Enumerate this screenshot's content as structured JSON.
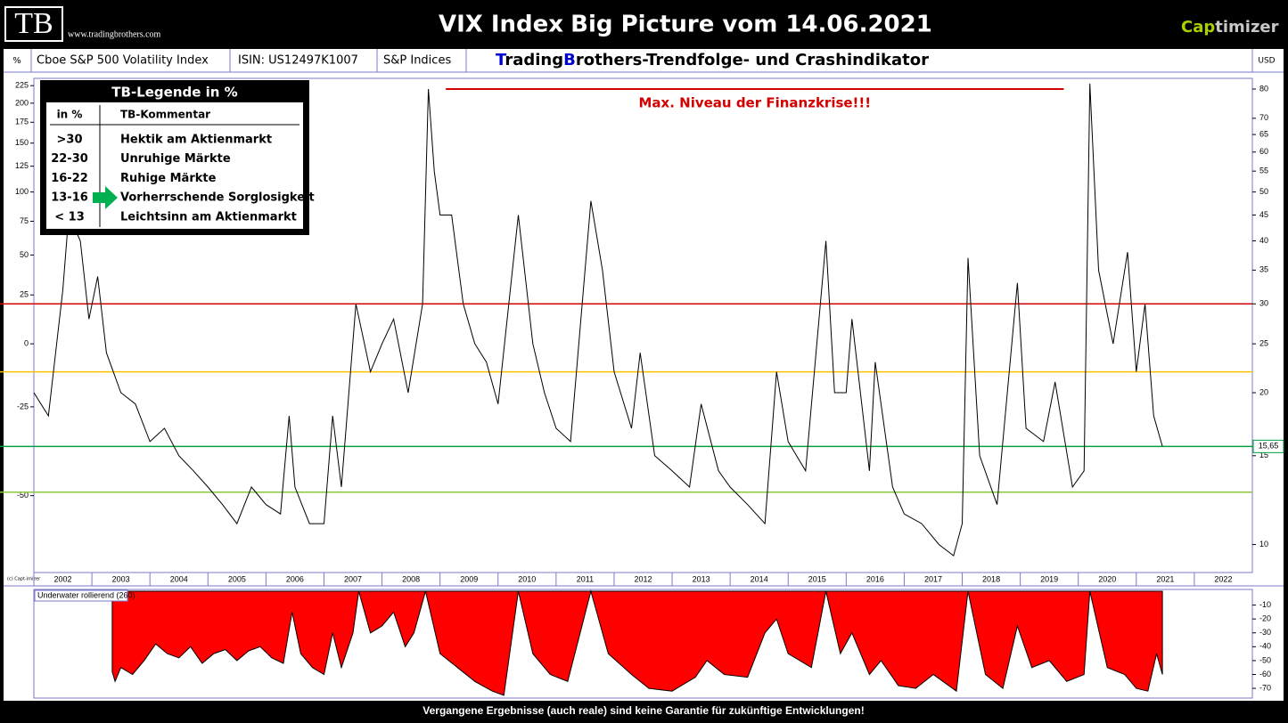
{
  "header": {
    "logo": "TB",
    "url": "www.tradingbrothers.com",
    "title": "VIX Index",
    "subtitle": "Big Picture vom 14.06.2021",
    "brand_a": "Cap",
    "brand_b": "timizer"
  },
  "info_bar": {
    "unit_left": "%",
    "name": "Cboe S&P 500 Volatility Index",
    "isin": "ISIN: US12497K1007",
    "provider": "S&P Indices",
    "heading": [
      "T",
      "rading",
      "B",
      "rothers-Trendfolge- und Crashindikator"
    ],
    "unit_right": "USD"
  },
  "tb_legend": {
    "title": "TB-Legende in %",
    "headers": [
      "in %",
      "TB-Kommentar"
    ],
    "rows": [
      [
        ">30",
        "Hektik am Aktienmarkt"
      ],
      [
        "22-30",
        "Unruhige Märkte"
      ],
      [
        "16-22",
        "Ruhige Märkte"
      ],
      [
        "13-16",
        "Vorherrschende Sorglosigkeit"
      ],
      [
        "< 13",
        "Leichtsinn am Aktienmarkt"
      ]
    ]
  },
  "copyright": "(c) Capt-imizer",
  "footer": "Vergangene Ergebnisse (auch reale) sind keine Garantie für zukünftige Entwicklungen!",
  "chart_data": [
    {
      "type": "line",
      "color": "#000000",
      "log": true,
      "x": [
        2002.0,
        2002.25,
        2002.5,
        2002.6,
        2002.8,
        2002.95,
        2003.1,
        2003.25,
        2003.5,
        2003.75,
        2004.0,
        2004.25,
        2004.5,
        2004.75,
        2005.0,
        2005.25,
        2005.5,
        2005.75,
        2006.0,
        2006.25,
        2006.4,
        2006.5,
        2006.75,
        2007.0,
        2007.15,
        2007.3,
        2007.55,
        2007.8,
        2008.0,
        2008.2,
        2008.45,
        2008.7,
        2008.8,
        2008.9,
        2009.0,
        2009.2,
        2009.4,
        2009.6,
        2009.8,
        2010.0,
        2010.35,
        2010.6,
        2010.8,
        2011.0,
        2011.25,
        2011.6,
        2011.8,
        2012.0,
        2012.3,
        2012.45,
        2012.7,
        2013.0,
        2013.3,
        2013.5,
        2013.8,
        2014.0,
        2014.3,
        2014.6,
        2014.8,
        2015.0,
        2015.3,
        2015.65,
        2015.8,
        2016.0,
        2016.1,
        2016.4,
        2016.5,
        2016.8,
        2017.0,
        2017.3,
        2017.6,
        2017.85,
        2018.0,
        2018.1,
        2018.3,
        2018.6,
        2018.95,
        2019.1,
        2019.4,
        2019.6,
        2019.9,
        2020.1,
        2020.2,
        2020.35,
        2020.6,
        2020.85,
        2021.0,
        2021.15,
        2021.3,
        2021.45
      ],
      "values": [
        20,
        18,
        32,
        45,
        40,
        28,
        34,
        24,
        20,
        19,
        16,
        17,
        15,
        14,
        13,
        12,
        11,
        13,
        12,
        11.5,
        18,
        13,
        11,
        11,
        18,
        13,
        30,
        22,
        25,
        28,
        20,
        30,
        80,
        55,
        45,
        45,
        30,
        25,
        23,
        19,
        45,
        25,
        20,
        17,
        16,
        48,
        35,
        22,
        17,
        24,
        15,
        14,
        13,
        19,
        14,
        13,
        12,
        11,
        22,
        16,
        14,
        40,
        20,
        20,
        28,
        14,
        23,
        13,
        11.5,
        11,
        10,
        9.5,
        11,
        37,
        15,
        12,
        33,
        17,
        16,
        21,
        13,
        14,
        82,
        35,
        25,
        38,
        22,
        30,
        18,
        15.65
      ],
      "xlim": [
        2002,
        2023
      ],
      "xticks": [
        2002,
        2003,
        2004,
        2005,
        2006,
        2007,
        2008,
        2009,
        2010,
        2011,
        2012,
        2013,
        2014,
        2015,
        2016,
        2017,
        2018,
        2019,
        2020,
        2021,
        2022
      ],
      "ylim": [
        8.8,
        84
      ],
      "yticks": [
        10,
        15,
        20,
        25,
        30,
        35,
        40,
        45,
        50,
        55,
        60,
        65,
        70,
        80
      ],
      "y2lim": [
        -64.8,
        236
      ],
      "y2ticks": [
        -50,
        -25,
        0,
        25,
        50,
        75,
        100,
        125,
        150,
        175,
        200,
        225
      ],
      "reference_lines": [
        {
          "value": 30,
          "color": "#d40000"
        },
        {
          "value": 22,
          "color": "#ffc000"
        },
        {
          "value": 15.65,
          "label": "15,65",
          "color": "#00a040"
        },
        {
          "value": 12.7,
          "color": "#8cc63f"
        }
      ],
      "annotation": {
        "text": "Max. Niveau der Finanzkrise!!!",
        "value": 80,
        "x": [
          2009.1,
          2019.75
        ],
        "color": "#d40000"
      }
    },
    {
      "type": "area",
      "title": "Underwater rollierend (260)",
      "color": "#ff0000",
      "x": [
        2003.35,
        2003.4,
        2003.5,
        2003.7,
        2003.9,
        2004.1,
        2004.3,
        2004.5,
        2004.7,
        2004.9,
        2005.1,
        2005.3,
        2005.5,
        2005.7,
        2005.9,
        2006.1,
        2006.3,
        2006.45,
        2006.6,
        2006.8,
        2007.0,
        2007.15,
        2007.3,
        2007.5,
        2007.6,
        2007.8,
        2008.0,
        2008.2,
        2008.4,
        2008.55,
        2008.75,
        2009.0,
        2009.3,
        2009.6,
        2009.9,
        2010.1,
        2010.35,
        2010.6,
        2010.9,
        2011.2,
        2011.6,
        2011.9,
        2012.3,
        2012.6,
        2013.0,
        2013.4,
        2013.6,
        2013.9,
        2014.3,
        2014.6,
        2014.8,
        2015.0,
        2015.4,
        2015.65,
        2015.9,
        2016.1,
        2016.4,
        2016.6,
        2016.9,
        2017.2,
        2017.5,
        2017.9,
        2018.1,
        2018.4,
        2018.7,
        2018.95,
        2019.2,
        2019.5,
        2019.8,
        2020.1,
        2020.2,
        2020.5,
        2020.8,
        2021.0,
        2021.2,
        2021.35,
        2021.45
      ],
      "values": [
        -58,
        -65,
        -55,
        -60,
        -50,
        -38,
        -45,
        -48,
        -40,
        -52,
        -45,
        -42,
        -50,
        -43,
        -40,
        -48,
        -52,
        -15,
        -45,
        -55,
        -60,
        -30,
        -55,
        -30,
        0,
        -30,
        -25,
        -15,
        -40,
        -30,
        0,
        -45,
        -55,
        -65,
        -72,
        -75,
        0,
        -45,
        -60,
        -65,
        0,
        -45,
        -60,
        -70,
        -72,
        -62,
        -50,
        -60,
        -62,
        -30,
        -20,
        -45,
        -55,
        0,
        -45,
        -30,
        -60,
        -50,
        -68,
        -70,
        -60,
        -72,
        0,
        -60,
        -70,
        -25,
        -55,
        -50,
        -65,
        -60,
        0,
        -55,
        -60,
        -70,
        -72,
        -45,
        -60
      ],
      "xlim": [
        2002,
        2023
      ],
      "ylim": [
        -77,
        0
      ],
      "yticks": [
        -10,
        -20,
        -30,
        -40,
        -50,
        -60,
        -70
      ]
    }
  ]
}
